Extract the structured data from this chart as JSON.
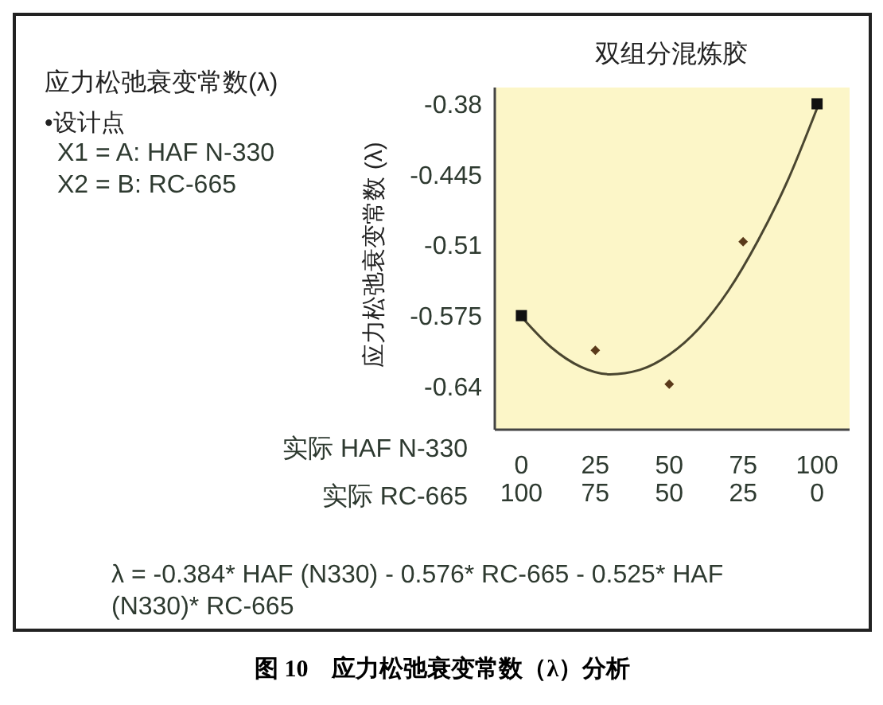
{
  "chart_data": {
    "type": "scatter",
    "title": "应力松弛衰变常数(λ)",
    "subtitle": "双组分混炼胶",
    "ylabel": "应力松弛衰变常数 (λ)",
    "xlabel": "实际 HAF N-330",
    "x2label": "实际 RC-665",
    "xlim": [
      -9,
      111
    ],
    "xticks": [
      0,
      25,
      50,
      75,
      100
    ],
    "x2lim": [
      109,
      -11
    ],
    "x2ticks": [
      100,
      75,
      50,
      25,
      0
    ],
    "ylim": [
      -0.68,
      -0.365
    ],
    "yticks": [
      -0.38,
      -0.445,
      -0.51,
      -0.575,
      -0.64
    ],
    "grid": false,
    "series": [
      {
        "type": "line",
        "color": "#4a4630",
        "marker": "none",
        "x": [
          0,
          10,
          20,
          30,
          40,
          50,
          60,
          70,
          80,
          90,
          100
        ],
        "values": [
          -0.576,
          -0.604,
          -0.622,
          -0.629,
          -0.625,
          -0.611,
          -0.587,
          -0.552,
          -0.506,
          -0.451,
          -0.384
        ]
      },
      {
        "color": "#111111",
        "marker": "square",
        "x": [
          0,
          100
        ],
        "values": [
          -0.575,
          -0.38
        ]
      },
      {
        "color": "#5a3a1a",
        "marker": "diamond",
        "x": [
          25,
          50,
          75
        ],
        "values": [
          -0.607,
          -0.638,
          -0.507
        ]
      }
    ],
    "annotations": [
      "•设计点",
      "X1 = A: HAF N-330",
      "X2 = B: RC-665",
      "λ = -0.384* HAF (N330) - 0.576* RC-665 - 0.525* HAF (N330)* RC-665",
      "图 10　应力松弛衰变常数（λ）分析"
    ]
  }
}
